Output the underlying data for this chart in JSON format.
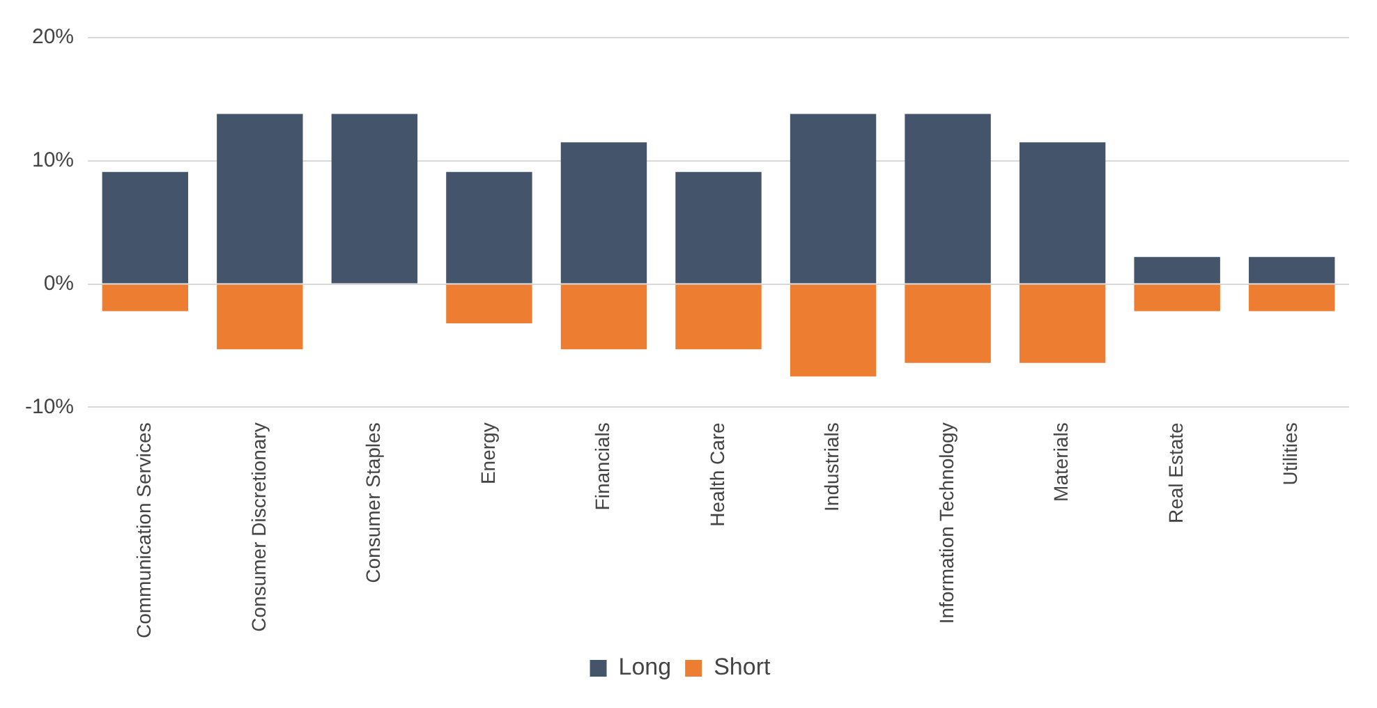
{
  "chart_data": {
    "type": "bar",
    "stacked": true,
    "categories": [
      "Communication Services",
      "Consumer Discretionary",
      "Consumer Staples",
      "Energy",
      "Financials",
      "Health Care",
      "Industrials",
      "Information Technology",
      "Materials",
      "Real Estate",
      "Utilities"
    ],
    "series": [
      {
        "name": "Long",
        "color": "#44546a",
        "values": [
          9.1,
          13.8,
          13.8,
          9.1,
          11.5,
          9.1,
          13.8,
          13.8,
          11.5,
          2.2,
          2.2
        ]
      },
      {
        "name": "Short",
        "color": "#ed7d31",
        "values": [
          -2.2,
          -5.3,
          0,
          -3.2,
          -5.3,
          -5.3,
          -7.5,
          -6.4,
          -6.4,
          -2.2,
          -2.2
        ]
      }
    ],
    "ylim": [
      -10,
      20
    ],
    "yticks": [
      {
        "value": -10,
        "label": "-10%"
      },
      {
        "value": 0,
        "label": "0%"
      },
      {
        "value": 10,
        "label": "10%"
      },
      {
        "value": 20,
        "label": "20%"
      }
    ],
    "grid": "y",
    "legend": "bottom"
  }
}
